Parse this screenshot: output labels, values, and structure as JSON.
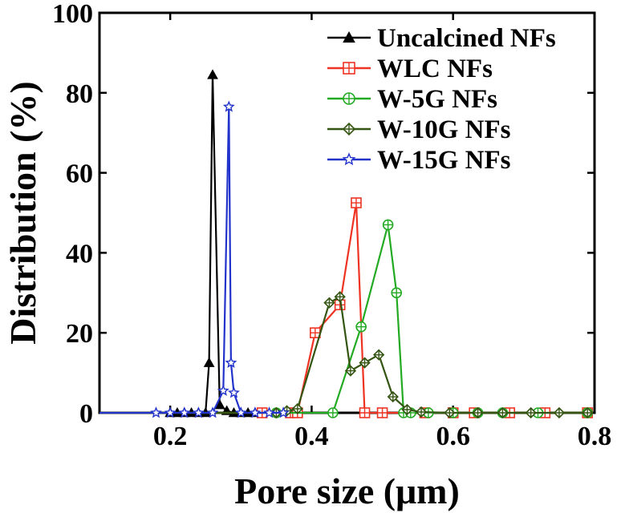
{
  "chart_data": {
    "type": "line",
    "title": "",
    "xlabel": "Pore size (μm)",
    "ylabel": "Distribution (%)",
    "xlim": [
      0.1,
      0.8
    ],
    "ylim": [
      0,
      100
    ],
    "xticks": [
      0.2,
      0.4,
      0.6,
      0.8
    ],
    "xtick_labels": [
      "0.2",
      "0.4",
      "0.6",
      "0.8"
    ],
    "yticks": [
      0,
      20,
      40,
      60,
      80,
      100
    ],
    "ytick_labels": [
      "0",
      "20",
      "40",
      "60",
      "80",
      "100"
    ],
    "grid": false,
    "legend_position": "top-right",
    "series": [
      {
        "name": "Uncalcined NFs",
        "color": "#000000",
        "marker": "triangle-filled",
        "x": [
          0.1,
          0.2,
          0.21,
          0.22,
          0.23,
          0.24,
          0.25,
          0.255,
          0.26,
          0.27,
          0.28,
          0.29,
          0.3,
          0.31,
          0.32
        ],
        "y": [
          0,
          0,
          0,
          0,
          0,
          0,
          0,
          12.5,
          84.5,
          2,
          0.5,
          0,
          0,
          0,
          0
        ]
      },
      {
        "name": "WLC NFs",
        "color": "#ee3322",
        "marker": "square-plus",
        "x": [
          0.1,
          0.33,
          0.37,
          0.38,
          0.405,
          0.44,
          0.463,
          0.475,
          0.5,
          0.56,
          0.6,
          0.63,
          0.68,
          0.73,
          0.79
        ],
        "y": [
          0,
          0,
          0,
          0,
          20,
          27,
          52.5,
          0,
          0,
          0,
          0,
          0,
          0,
          0,
          0
        ]
      },
      {
        "name": "W-5G NFs",
        "color": "#22aa22",
        "marker": "circle-plus",
        "x": [
          0.1,
          0.35,
          0.43,
          0.47,
          0.508,
          0.52,
          0.53,
          0.54,
          0.565,
          0.6,
          0.635,
          0.67,
          0.72,
          0.79
        ],
        "y": [
          0,
          0,
          0,
          21.5,
          47,
          30,
          0,
          0,
          0,
          0,
          0,
          0,
          0,
          0
        ]
      },
      {
        "name": "W-10G NFs",
        "color": "#335511",
        "marker": "diamond-plus",
        "x": [
          0.1,
          0.35,
          0.365,
          0.38,
          0.425,
          0.44,
          0.455,
          0.475,
          0.495,
          0.515,
          0.535,
          0.555,
          0.595,
          0.635,
          0.67,
          0.71,
          0.75,
          0.79
        ],
        "y": [
          0,
          0,
          0.5,
          1,
          27.5,
          29,
          10.5,
          12.5,
          14.5,
          4,
          0.8,
          0.2,
          0,
          0,
          0,
          0,
          0,
          0
        ]
      },
      {
        "name": "W-15G NFs",
        "color": "#2233cc",
        "marker": "star",
        "x": [
          0.1,
          0.18,
          0.2,
          0.22,
          0.24,
          0.26,
          0.275,
          0.283,
          0.286,
          0.29,
          0.3,
          0.32,
          0.34,
          0.36
        ],
        "y": [
          0,
          0,
          0,
          0,
          0,
          0,
          5.5,
          76.5,
          12.5,
          5,
          0,
          0,
          0,
          0
        ]
      }
    ]
  }
}
